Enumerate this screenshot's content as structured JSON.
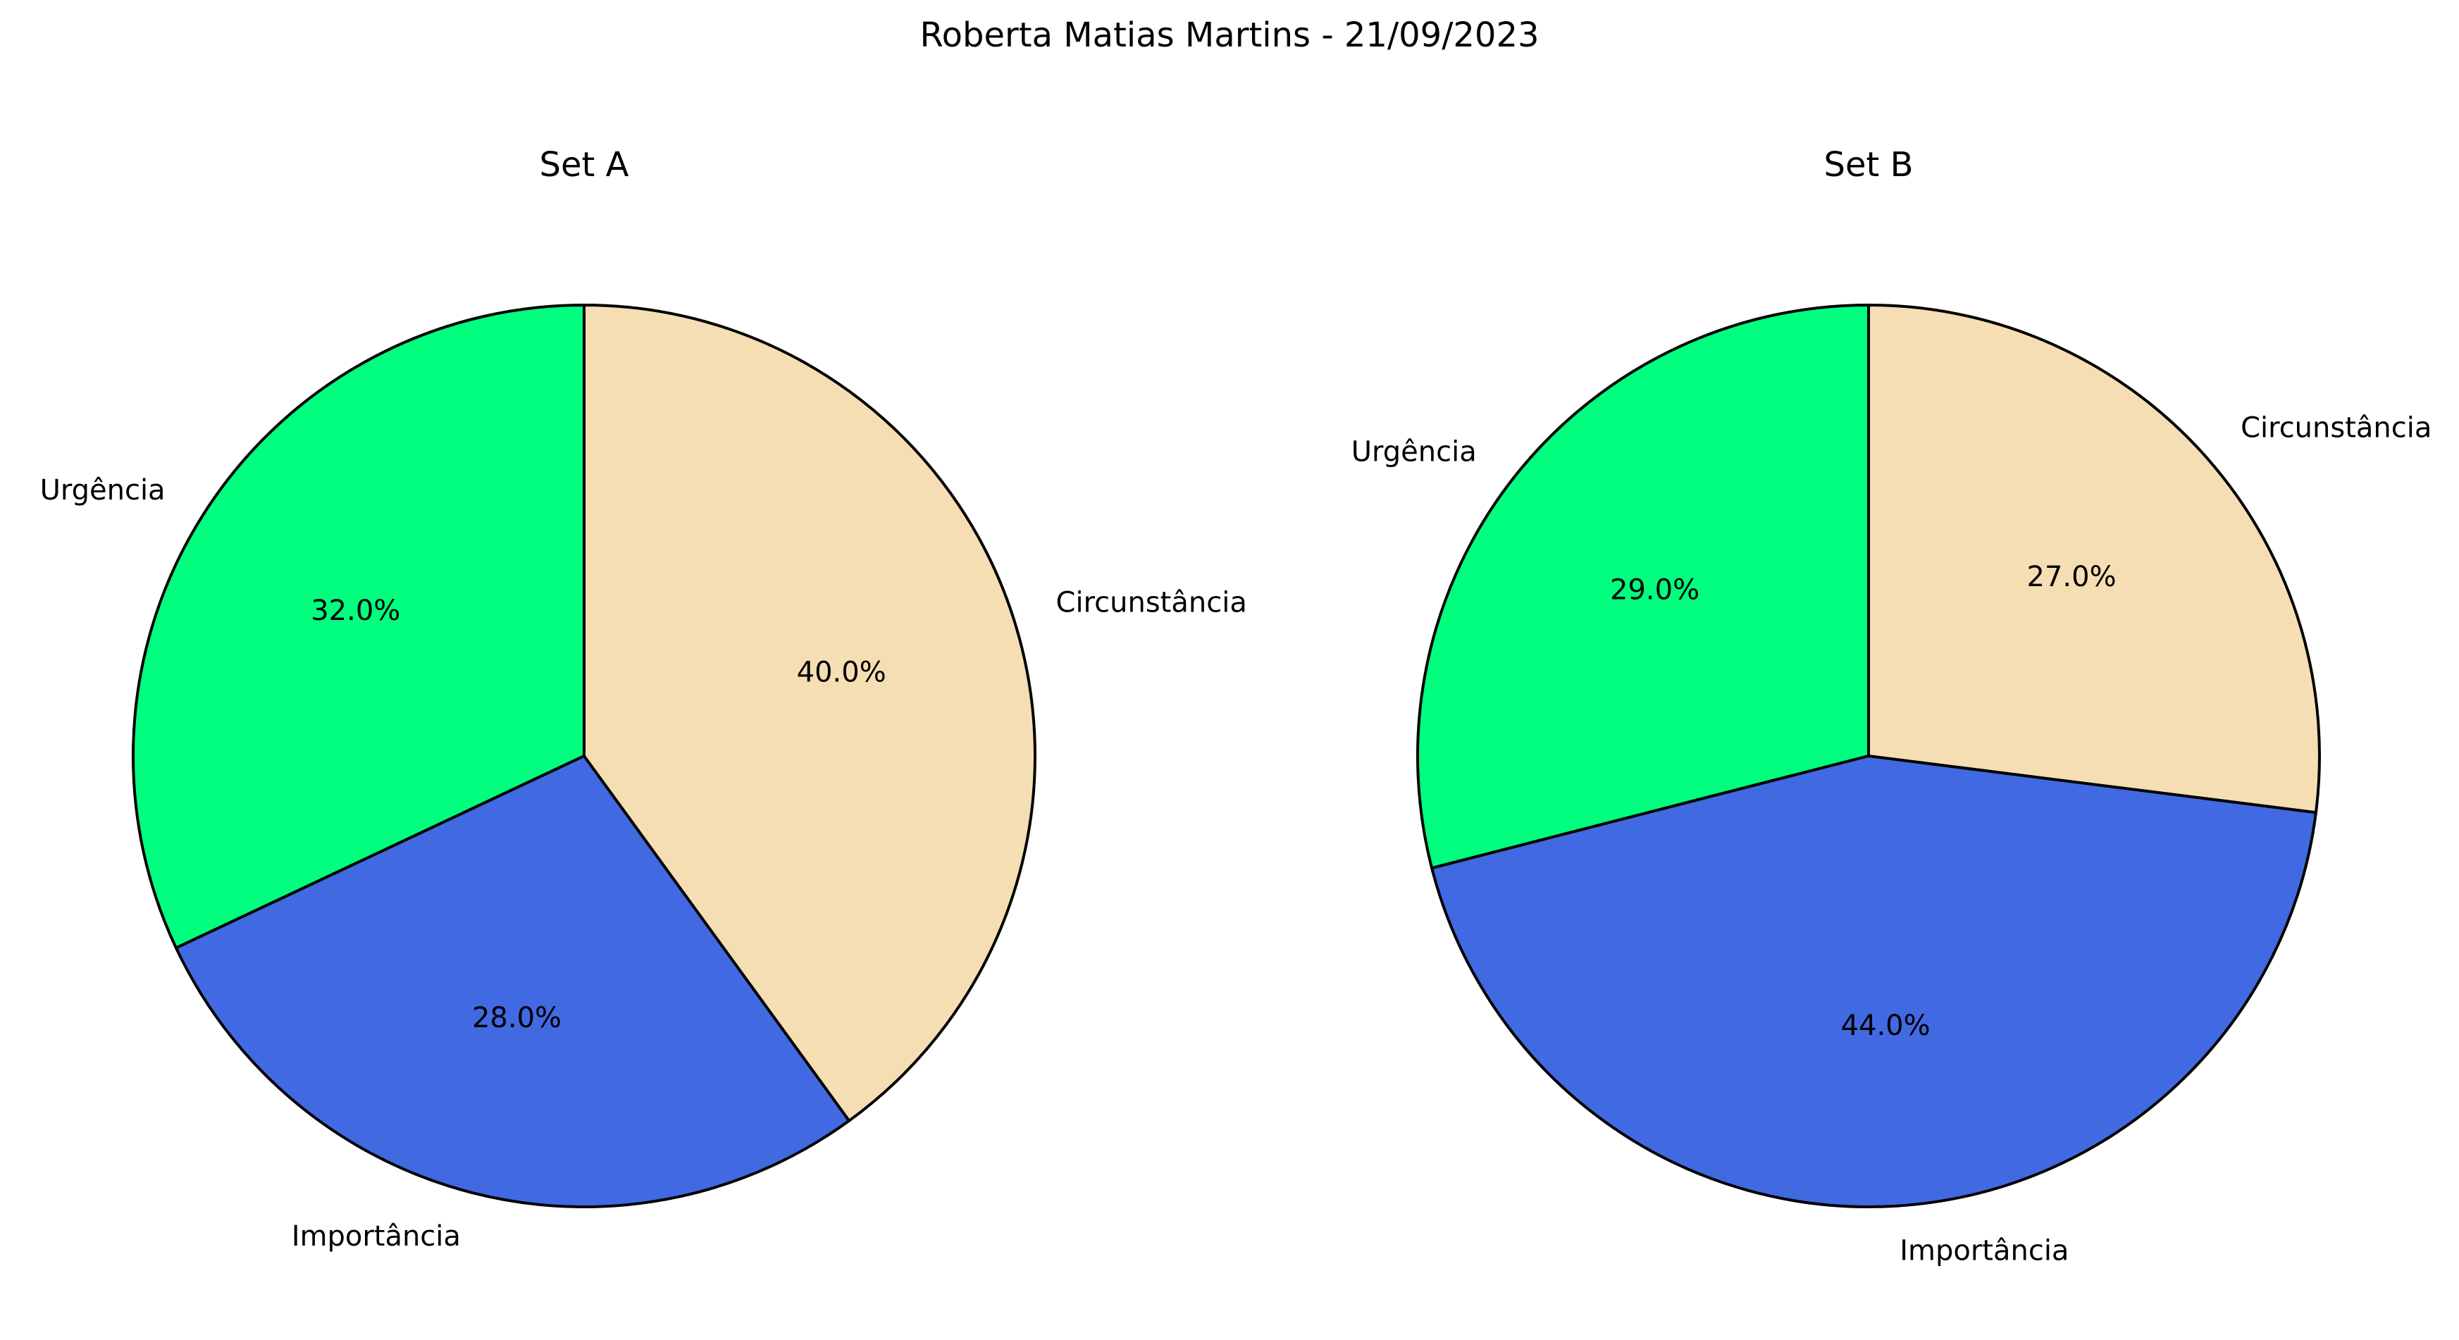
{
  "figure": {
    "title": "Roberta Matias Martins - 21/09/2023"
  },
  "chart_data": [
    {
      "type": "pie",
      "title": "Set A",
      "categories": [
        "Urgência",
        "Importância",
        "Circunstância"
      ],
      "values": [
        32.0,
        28.0,
        40.0
      ],
      "colors": [
        "#00ff7f",
        "#4169e1",
        "#f5deb3"
      ],
      "value_labels": [
        "32.0%",
        "28.0%",
        "40.0%"
      ],
      "start_angle_deg": 90,
      "direction": "counterclockwise",
      "edge_color": "#000000"
    },
    {
      "type": "pie",
      "title": "Set B",
      "categories": [
        "Urgência",
        "Importância",
        "Circunstância"
      ],
      "values": [
        29.0,
        44.0,
        27.0
      ],
      "colors": [
        "#00ff7f",
        "#4169e1",
        "#f5deb3"
      ],
      "value_labels": [
        "29.0%",
        "44.0%",
        "27.0%"
      ],
      "start_angle_deg": 90,
      "direction": "counterclockwise",
      "edge_color": "#000000"
    }
  ]
}
